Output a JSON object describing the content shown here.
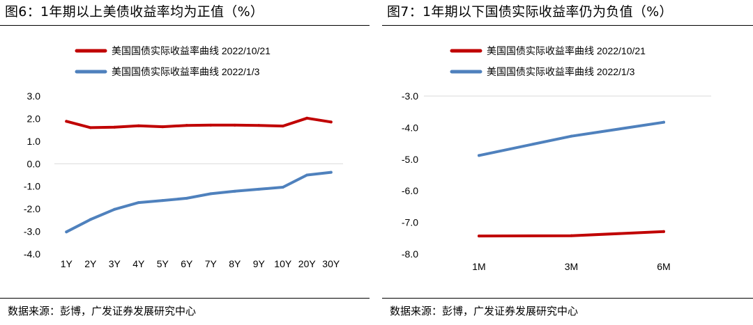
{
  "panels": [
    {
      "title": "图6：1年期以上美债收益率均为正值（%）",
      "source": "数据来源：彭博，广发证券发展研究中心"
    },
    {
      "title": "图7：1年期以下国债实际收益率仍为负值（%）",
      "source": "数据来源：彭博，广发证券发展研究中心"
    }
  ],
  "chart_data": [
    {
      "type": "line",
      "title": "1年期以上美债收益率均为正值（%）",
      "xlabel": "",
      "ylabel": "",
      "categories": [
        "1Y",
        "2Y",
        "3Y",
        "4Y",
        "5Y",
        "6Y",
        "7Y",
        "8Y",
        "9Y",
        "10Y",
        "20Y",
        "30Y"
      ],
      "ylim": [
        -4.0,
        3.0
      ],
      "yticks": [
        "3.0",
        "2.0",
        "1.0",
        "0.0",
        "-1.0",
        "-2.0",
        "-3.0",
        "-4.0"
      ],
      "ytick_values": [
        3,
        2,
        1,
        0,
        -1,
        -2,
        -3,
        -4
      ],
      "legend_position": "top-left",
      "grid": false,
      "series": [
        {
          "name": "美国国债实际收益率曲线 2022/10/21",
          "color": "#C00000",
          "values": [
            1.88,
            1.6,
            1.62,
            1.68,
            1.64,
            1.7,
            1.71,
            1.71,
            1.7,
            1.67,
            2.02,
            1.85
          ]
        },
        {
          "name": "美国国债实际收益率曲线 2022/1/3",
          "color": "#4F81BD",
          "values": [
            -3.02,
            -2.47,
            -2.02,
            -1.72,
            -1.63,
            -1.53,
            -1.33,
            -1.22,
            -1.13,
            -1.04,
            -0.5,
            -0.38
          ]
        }
      ]
    },
    {
      "type": "line",
      "title": "1年期以下国债实际收益率仍为负值（%）",
      "xlabel": "",
      "ylabel": "",
      "categories": [
        "1M",
        "3M",
        "6M"
      ],
      "ylim": [
        -8.0,
        -3.0
      ],
      "yticks": [
        "-3.0",
        "-4.0",
        "-5.0",
        "-6.0",
        "-7.0",
        "-8.0"
      ],
      "ytick_values": [
        -3,
        -4,
        -5,
        -6,
        -7,
        -8
      ],
      "legend_position": "top-left",
      "grid": false,
      "series": [
        {
          "name": "美国国债实际收益率曲线 2022/10/21",
          "color": "#C00000",
          "values": [
            -7.43,
            -7.42,
            -7.29
          ]
        },
        {
          "name": "美国国债实际收益率曲线 2022/1/3",
          "color": "#4F81BD",
          "values": [
            -4.88,
            -4.27,
            -3.83
          ]
        }
      ]
    }
  ]
}
